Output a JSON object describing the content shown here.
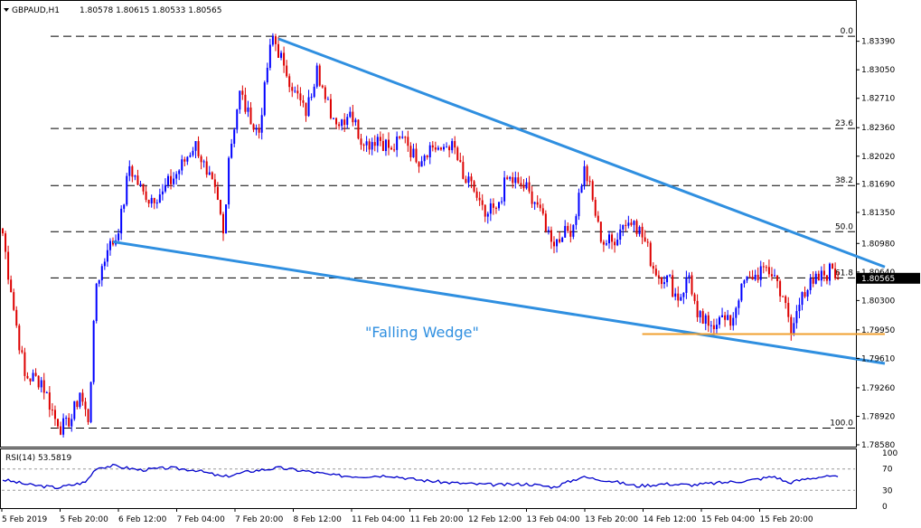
{
  "header": {
    "symbol": "GBPAUD,H1",
    "ohlc": "1.80578 1.80615 1.80533 1.80565"
  },
  "annotation": "\"Falling Wedge\"",
  "colors": {
    "up": "#0000ff",
    "down": "#dd0000",
    "trendline": "#2f8fe0",
    "support": "#f0a030",
    "rsi": "#0000cc",
    "grid_dash": "#000000",
    "annotation": "#2f8fe0"
  },
  "chart_data": [
    {
      "type": "candlestick",
      "ylim": [
        1.7858,
        1.8358
      ],
      "price_ticks": [
        "1.83390",
        "1.83050",
        "1.82710",
        "1.82360",
        "1.82020",
        "1.81690",
        "1.81350",
        "1.80980",
        "1.80640",
        "1.80300",
        "1.79950",
        "1.79610",
        "1.79260",
        "1.78920",
        "1.78580"
      ],
      "current_price": "1.80565",
      "x_ticks": [
        "5 Feb 2019",
        "5 Feb 20:00",
        "6 Feb 12:00",
        "7 Feb 04:00",
        "7 Feb 20:00",
        "8 Feb 12:00",
        "11 Feb 04:00",
        "11 Feb 20:00",
        "12 Feb 12:00",
        "13 Feb 04:00",
        "13 Feb 20:00",
        "14 Feb 12:00",
        "15 Feb 04:00",
        "15 Feb 20:00"
      ],
      "fib_levels": [
        {
          "label": "0.0",
          "price": 1.8345
        },
        {
          "label": "23.6",
          "price": 1.8235
        },
        {
          "label": "38.2",
          "price": 1.8167
        },
        {
          "label": "50.0",
          "price": 1.8112
        },
        {
          "label": "61.8",
          "price": 1.8057
        },
        {
          "label": "100.0",
          "price": 1.7878
        }
      ],
      "key_path": [
        [
          0,
          1.811
        ],
        [
          3,
          1.804
        ],
        [
          8,
          1.794
        ],
        [
          14,
          1.7935
        ],
        [
          20,
          1.788
        ],
        [
          24,
          1.788
        ],
        [
          28,
          1.792
        ],
        [
          31,
          1.7885
        ],
        [
          34,
          1.805
        ],
        [
          38,
          1.809
        ],
        [
          42,
          1.811
        ],
        [
          46,
          1.819
        ],
        [
          52,
          1.815
        ],
        [
          58,
          1.816
        ],
        [
          64,
          1.8185
        ],
        [
          70,
          1.822
        ],
        [
          74,
          1.818
        ],
        [
          78,
          1.815
        ],
        [
          80,
          1.811
        ],
        [
          82,
          1.82
        ],
        [
          86,
          1.828
        ],
        [
          90,
          1.824
        ],
        [
          93,
          1.823
        ],
        [
          95,
          1.829
        ],
        [
          98,
          1.8345
        ],
        [
          102,
          1.831
        ],
        [
          106,
          1.828
        ],
        [
          110,
          1.825
        ],
        [
          114,
          1.831
        ],
        [
          117,
          1.827
        ],
        [
          121,
          1.824
        ],
        [
          126,
          1.8255
        ],
        [
          131,
          1.8215
        ],
        [
          136,
          1.8225
        ],
        [
          141,
          1.821
        ],
        [
          146,
          1.8225
        ],
        [
          150,
          1.8195
        ],
        [
          155,
          1.8215
        ],
        [
          159,
          1.821
        ],
        [
          163,
          1.822
        ],
        [
          167,
          1.8175
        ],
        [
          171,
          1.816
        ],
        [
          175,
          1.813
        ],
        [
          179,
          1.814
        ],
        [
          183,
          1.8175
        ],
        [
          187,
          1.817
        ],
        [
          191,
          1.816
        ],
        [
          195,
          1.814
        ],
        [
          199,
          1.81
        ],
        [
          203,
          1.8105
        ],
        [
          207,
          1.812
        ],
        [
          211,
          1.819
        ],
        [
          214,
          1.815
        ],
        [
          217,
          1.81
        ],
        [
          221,
          1.81
        ],
        [
          225,
          1.812
        ],
        [
          229,
          1.8125
        ],
        [
          233,
          1.81
        ],
        [
          237,
          1.806
        ],
        [
          241,
          1.806
        ],
        [
          245,
          1.803
        ],
        [
          249,
          1.806
        ],
        [
          252,
          1.801
        ],
        [
          256,
          1.8
        ],
        [
          260,
          1.801
        ],
        [
          264,
          1.8
        ],
        [
          268,
          1.805
        ],
        [
          272,
          1.8055
        ],
        [
          276,
          1.807
        ],
        [
          280,
          1.806
        ],
        [
          283,
          1.8035
        ],
        [
          286,
          1.799
        ],
        [
          290,
          1.804
        ],
        [
          294,
          1.805
        ],
        [
          298,
          1.806
        ],
        [
          301,
          1.8068
        ],
        [
          303,
          1.8056
        ]
      ],
      "falling_wedge": {
        "upper": [
          [
            100,
            1.8342
          ],
          [
            320,
            1.807
          ]
        ],
        "lower": [
          [
            40,
            1.81
          ],
          [
            320,
            1.7955
          ]
        ]
      },
      "support_line": {
        "price": 1.799,
        "from": 232,
        "to": 320
      }
    },
    {
      "type": "line",
      "label": "RSI(14) 53.5819",
      "ylim": [
        0,
        100
      ],
      "y_ticks": [
        "100",
        "70",
        "30",
        "0"
      ],
      "levels": [
        70,
        30
      ],
      "key_path": [
        [
          0,
          50
        ],
        [
          10,
          40
        ],
        [
          20,
          35
        ],
        [
          30,
          45
        ],
        [
          34,
          72
        ],
        [
          40,
          76
        ],
        [
          50,
          68
        ],
        [
          60,
          72
        ],
        [
          70,
          68
        ],
        [
          80,
          55
        ],
        [
          90,
          66
        ],
        [
          100,
          72
        ],
        [
          110,
          66
        ],
        [
          120,
          58
        ],
        [
          130,
          56
        ],
        [
          140,
          58
        ],
        [
          150,
          50
        ],
        [
          160,
          45
        ],
        [
          170,
          42
        ],
        [
          180,
          40
        ],
        [
          190,
          42
        ],
        [
          200,
          36
        ],
        [
          210,
          55
        ],
        [
          220,
          48
        ],
        [
          230,
          38
        ],
        [
          240,
          42
        ],
        [
          250,
          40
        ],
        [
          260,
          44
        ],
        [
          270,
          48
        ],
        [
          280,
          56
        ],
        [
          285,
          44
        ],
        [
          292,
          52
        ],
        [
          298,
          56
        ],
        [
          303,
          54
        ]
      ]
    }
  ]
}
